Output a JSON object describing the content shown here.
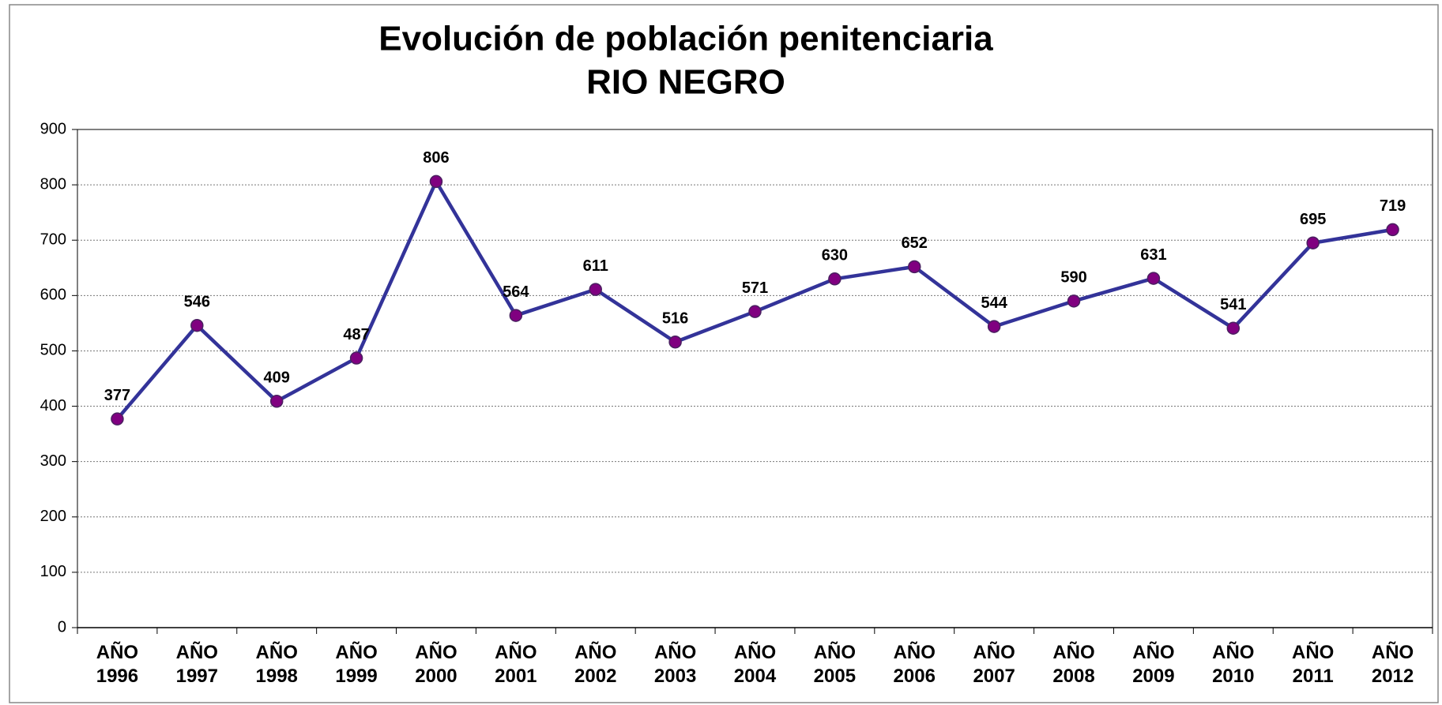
{
  "chart_data": {
    "type": "line",
    "title": "Evolución de población penitenciaria",
    "subtitle": "RIO NEGRO",
    "categories": [
      "AÑO 1996",
      "AÑO 1997",
      "AÑO 1998",
      "AÑO 1999",
      "AÑO 2000",
      "AÑO 2001",
      "AÑO 2002",
      "AÑO 2003",
      "AÑO 2004",
      "AÑO 2005",
      "AÑO 2006",
      "AÑO 2007",
      "AÑO 2008",
      "AÑO 2009",
      "AÑO 2010",
      "AÑO 2011",
      "AÑO 2012"
    ],
    "values": [
      377,
      546,
      409,
      487,
      806,
      564,
      611,
      516,
      571,
      630,
      652,
      544,
      590,
      631,
      541,
      695,
      719
    ],
    "color": "#333399",
    "marker_color": "#800080",
    "ylim": [
      0,
      900
    ],
    "yticks": [
      0,
      100,
      200,
      300,
      400,
      500,
      600,
      700,
      800,
      900
    ],
    "grid": true
  }
}
